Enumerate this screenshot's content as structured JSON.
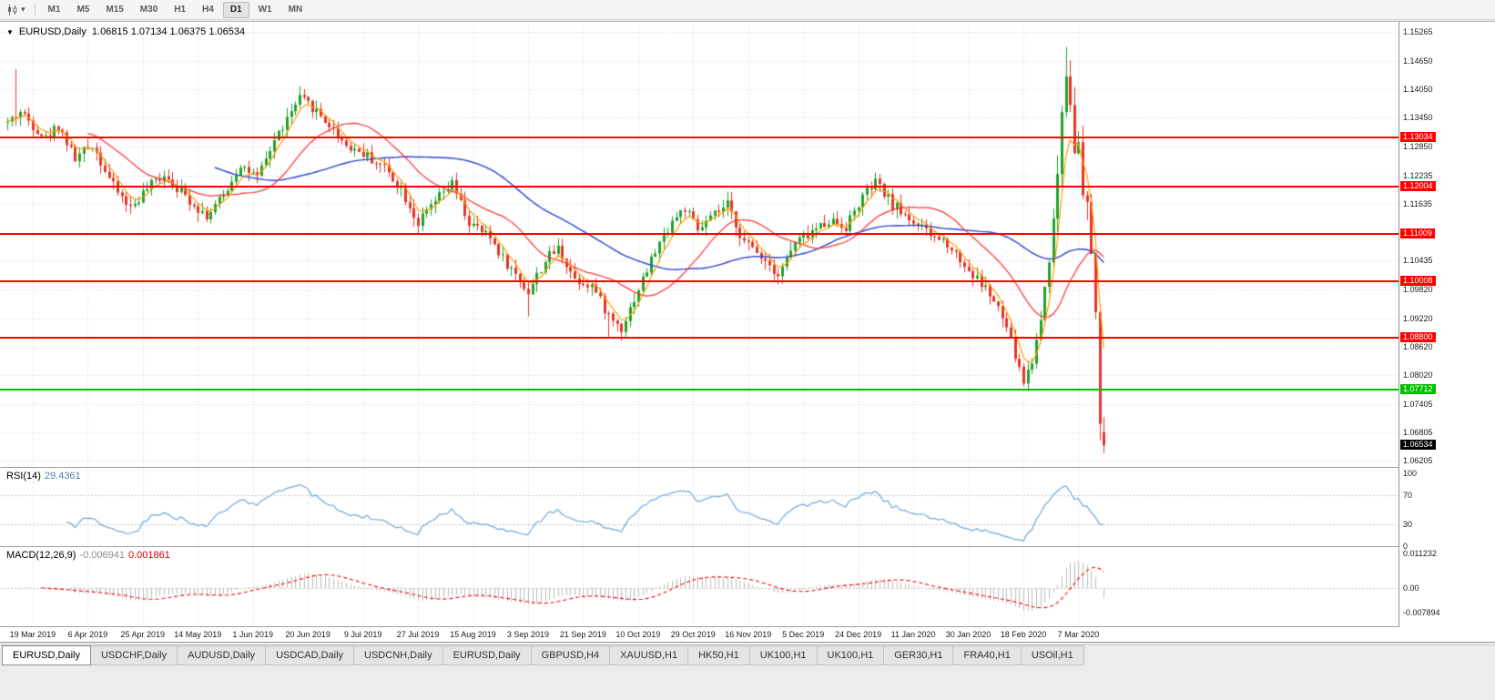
{
  "toolbar": {
    "chart_icon": "candlestick-chart",
    "timeframes": [
      "M1",
      "M5",
      "M15",
      "M30",
      "H1",
      "H4",
      "D1",
      "W1",
      "MN"
    ],
    "active_timeframe": "D1"
  },
  "chart": {
    "collapse_icon": "▼",
    "title": "EURUSD,Daily",
    "ohlc_text": "1.06815 1.07134 1.06375 1.06534",
    "current_price": "1.06534",
    "price_ticks": [
      "1.15265",
      "1.14650",
      "1.14050",
      "1.13450",
      "1.12850",
      "1.12235",
      "1.11635",
      "1.10435",
      "1.09820",
      "1.09220",
      "1.08620",
      "1.08020",
      "1.07405",
      "1.06805",
      "1.06205"
    ],
    "levels": [
      {
        "label": "1.13034",
        "price": 1.13034,
        "color": "#ff0000"
      },
      {
        "label": "1.12004",
        "price": 1.12004,
        "color": "#ff0000"
      },
      {
        "label": "1.11009",
        "price": 1.11009,
        "color": "#ff0000"
      },
      {
        "label": "1.10008",
        "price": 1.10008,
        "color": "#ff0000"
      },
      {
        "label": "1.08800",
        "price": 1.088,
        "color": "#ff0000"
      },
      {
        "label": "1.07712",
        "price": 1.07712,
        "color": "#00c000"
      }
    ]
  },
  "rsi": {
    "name": "RSI(14)",
    "value": "29.4361",
    "ticks": [
      "100",
      "70",
      "30",
      "0"
    ],
    "level_lines": [
      70,
      30
    ]
  },
  "macd": {
    "name": "MACD(12,26,9)",
    "value_main": "-0.006941",
    "value_signal": "0.001861",
    "ticks": [
      "0.011232",
      "0.00",
      "-0.007894"
    ]
  },
  "date_axis": [
    "19 Mar 2019",
    "6 Apr 2019",
    "25 Apr 2019",
    "14 May 2019",
    "1 Jun 2019",
    "20 Jun 2019",
    "9 Jul 2019",
    "27 Jul 2019",
    "15 Aug 2019",
    "3 Sep 2019",
    "21 Sep 2019",
    "10 Oct 2019",
    "29 Oct 2019",
    "16 Nov 2019",
    "5 Dec 2019",
    "24 Dec 2019",
    "11 Jan 2020",
    "30 Jan 2020",
    "18 Feb 2020",
    "7 Mar 2020"
  ],
  "tabs": {
    "items": [
      "EURUSD,Daily",
      "USDCHF,Daily",
      "AUDUSD,Daily",
      "USDCAD,Daily",
      "USDCNH,Daily",
      "EURUSD,Daily",
      "GBPUSD,H4",
      "XAUUSD,H1",
      "HK50,H1",
      "UK100,H1",
      "UK100,H1",
      "GER30,H1",
      "FRA40,H1",
      "USOil,H1"
    ],
    "active_index": 0
  },
  "colors": {
    "bull": "#1fa32b",
    "bear": "#e53528",
    "ma_fast": "#ff9d00",
    "ma_mid": "#ff3030",
    "ma_slow": "#2943cf",
    "rsi_line": "#6fa8dc",
    "macd_hist": "#bcbcbc",
    "macd_signal": "#ff0000",
    "grid": "#d9d9d9",
    "current_price_bg": "#000000"
  },
  "chart_data": {
    "type": "candlestick",
    "symbol": "EURUSD",
    "period": "Daily",
    "ylim": [
      1.0606,
      1.1542
    ],
    "last_candle": {
      "open": 1.06815,
      "high": 1.07134,
      "low": 1.06375,
      "close": 1.06534
    },
    "num_candles": 260,
    "candles_per_date_tick": 13,
    "first_tick_candle_index": 6,
    "seed": 42,
    "close_anchors": [
      [
        0,
        1.1335
      ],
      [
        3,
        1.1358
      ],
      [
        6,
        1.133
      ],
      [
        9,
        1.1302
      ],
      [
        12,
        1.133
      ],
      [
        16,
        1.1258
      ],
      [
        20,
        1.129
      ],
      [
        25,
        1.12
      ],
      [
        29,
        1.1155
      ],
      [
        33,
        1.1195
      ],
      [
        37,
        1.1228
      ],
      [
        42,
        1.118
      ],
      [
        47,
        1.1138
      ],
      [
        51,
        1.118
      ],
      [
        55,
        1.1248
      ],
      [
        59,
        1.1215
      ],
      [
        63,
        1.1298
      ],
      [
        69,
        1.1385
      ],
      [
        72,
        1.1368
      ],
      [
        76,
        1.133
      ],
      [
        80,
        1.1288
      ],
      [
        84,
        1.127
      ],
      [
        89,
        1.124
      ],
      [
        93,
        1.1196
      ],
      [
        97,
        1.1122
      ],
      [
        101,
        1.1168
      ],
      [
        105,
        1.1205
      ],
      [
        109,
        1.1122
      ],
      [
        114,
        1.1092
      ],
      [
        118,
        1.1036
      ],
      [
        123,
        1.0978
      ],
      [
        127,
        1.1044
      ],
      [
        130,
        1.107
      ],
      [
        134,
        1.1006
      ],
      [
        138,
        1.0992
      ],
      [
        142,
        1.0926
      ],
      [
        145,
        1.0902
      ],
      [
        149,
        1.0984
      ],
      [
        153,
        1.1064
      ],
      [
        157,
        1.1128
      ],
      [
        160,
        1.1154
      ],
      [
        163,
        1.1106
      ],
      [
        167,
        1.114
      ],
      [
        170,
        1.116
      ],
      [
        174,
        1.1082
      ],
      [
        178,
        1.1056
      ],
      [
        182,
        1.1016
      ],
      [
        186,
        1.108
      ],
      [
        190,
        1.1104
      ],
      [
        194,
        1.113
      ],
      [
        198,
        1.1116
      ],
      [
        202,
        1.1178
      ],
      [
        205,
        1.1208
      ],
      [
        209,
        1.1162
      ],
      [
        214,
        1.1126
      ],
      [
        218,
        1.1096
      ],
      [
        222,
        1.1082
      ],
      [
        227,
        1.1022
      ],
      [
        231,
        1.0986
      ],
      [
        234,
        1.094
      ],
      [
        236,
        1.0902
      ],
      [
        238,
        1.0842
      ],
      [
        240,
        1.0788
      ],
      [
        242,
        1.0832
      ],
      [
        244,
        1.092
      ],
      [
        246,
        1.106
      ],
      [
        247,
        1.112
      ],
      [
        248,
        1.1232
      ],
      [
        249,
        1.136
      ],
      [
        250,
        1.1442
      ],
      [
        251,
        1.139
      ],
      [
        252,
        1.1288
      ],
      [
        253,
        1.1282
      ],
      [
        254,
        1.1176
      ],
      [
        255,
        1.1152
      ],
      [
        256,
        1.106
      ],
      [
        257,
        1.094
      ],
      [
        258,
        1.07
      ],
      [
        259,
        1.06534
      ]
    ],
    "wick_overrides": [
      [
        2,
        "high",
        1.1448
      ],
      [
        69,
        "high",
        1.1412
      ],
      [
        123,
        "low",
        1.0926
      ],
      [
        142,
        "low",
        1.0879
      ],
      [
        240,
        "low",
        1.0778
      ],
      [
        250,
        "high",
        1.1495
      ],
      [
        258,
        "low",
        1.0664
      ]
    ],
    "hlines": [
      1.13034,
      1.12004,
      1.11009,
      1.10008,
      1.088,
      1.07712
    ],
    "indicators": [
      {
        "name": "RSI",
        "period": 14,
        "current": 29.4361
      },
      {
        "name": "MACD",
        "fast": 12,
        "slow": 26,
        "signal": 9,
        "current_main": -0.006941,
        "current_signal": 0.001861
      },
      {
        "name": "MA-fast-orange"
      },
      {
        "name": "MA-mid-red"
      },
      {
        "name": "MA-slow-blue"
      }
    ]
  }
}
